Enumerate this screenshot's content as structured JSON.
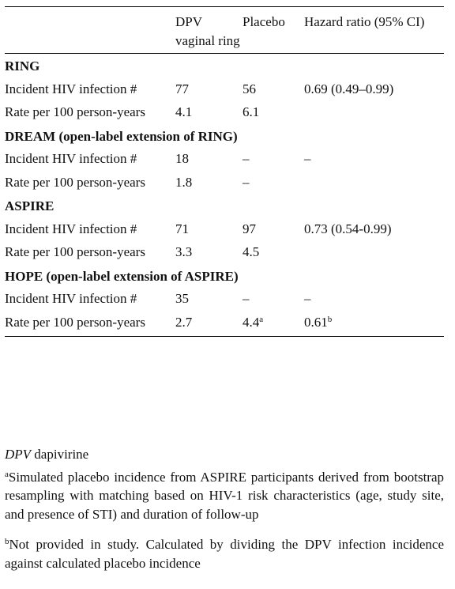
{
  "table": {
    "header": [
      "DPV vaginal ring",
      "Placebo",
      "Hazard ratio (95% CI)"
    ],
    "sections": [
      {
        "title": "RING",
        "rows": [
          [
            "Incident HIV infection #",
            "77",
            "56",
            "0.69 (0.49–0.99)"
          ],
          [
            "Rate per 100 person-years",
            "4.1",
            "6.1"
          ]
        ]
      },
      {
        "title": "DREAM (open-label extension of RING)",
        "rows": [
          [
            "Incident HIV infection #",
            "18",
            "–",
            "–"
          ],
          [
            "Rate per 100 person-years",
            "1.8",
            "–"
          ]
        ]
      },
      {
        "title": "ASPIRE",
        "rows": [
          [
            "Incident HIV infection #",
            "71",
            "97",
            "0.73 (0.54-0.99)"
          ],
          [
            "Rate per 100 person-years",
            "3.3",
            "4.5"
          ]
        ]
      },
      {
        "title": "HOPE (open-label extension of ASPIRE)",
        "rows": [
          [
            "Incident HIV infection #",
            "35",
            "–",
            "–"
          ],
          [
            "Rate per 100 person-years",
            "2.7",
            {
              "text": "4.4",
              "note": "a"
            },
            {
              "text": "0.61",
              "note": "b"
            }
          ]
        ]
      }
    ]
  },
  "footnotes": {
    "abbreviation": {
      "abbr": "DPV",
      "text": "dapivirine"
    },
    "notes": [
      {
        "mark": "a",
        "text": "Simulated placebo incidence from ASPIRE participants derived from bootstrap resampling with matching based on HIV-1 risk characteristics (age, study site, and presence of STI) and duration of follow-up"
      },
      {
        "mark": "b",
        "text": "Not provided in study. Calculated by dividing the DPV infection incidence against calculated placebo incidence"
      }
    ]
  }
}
